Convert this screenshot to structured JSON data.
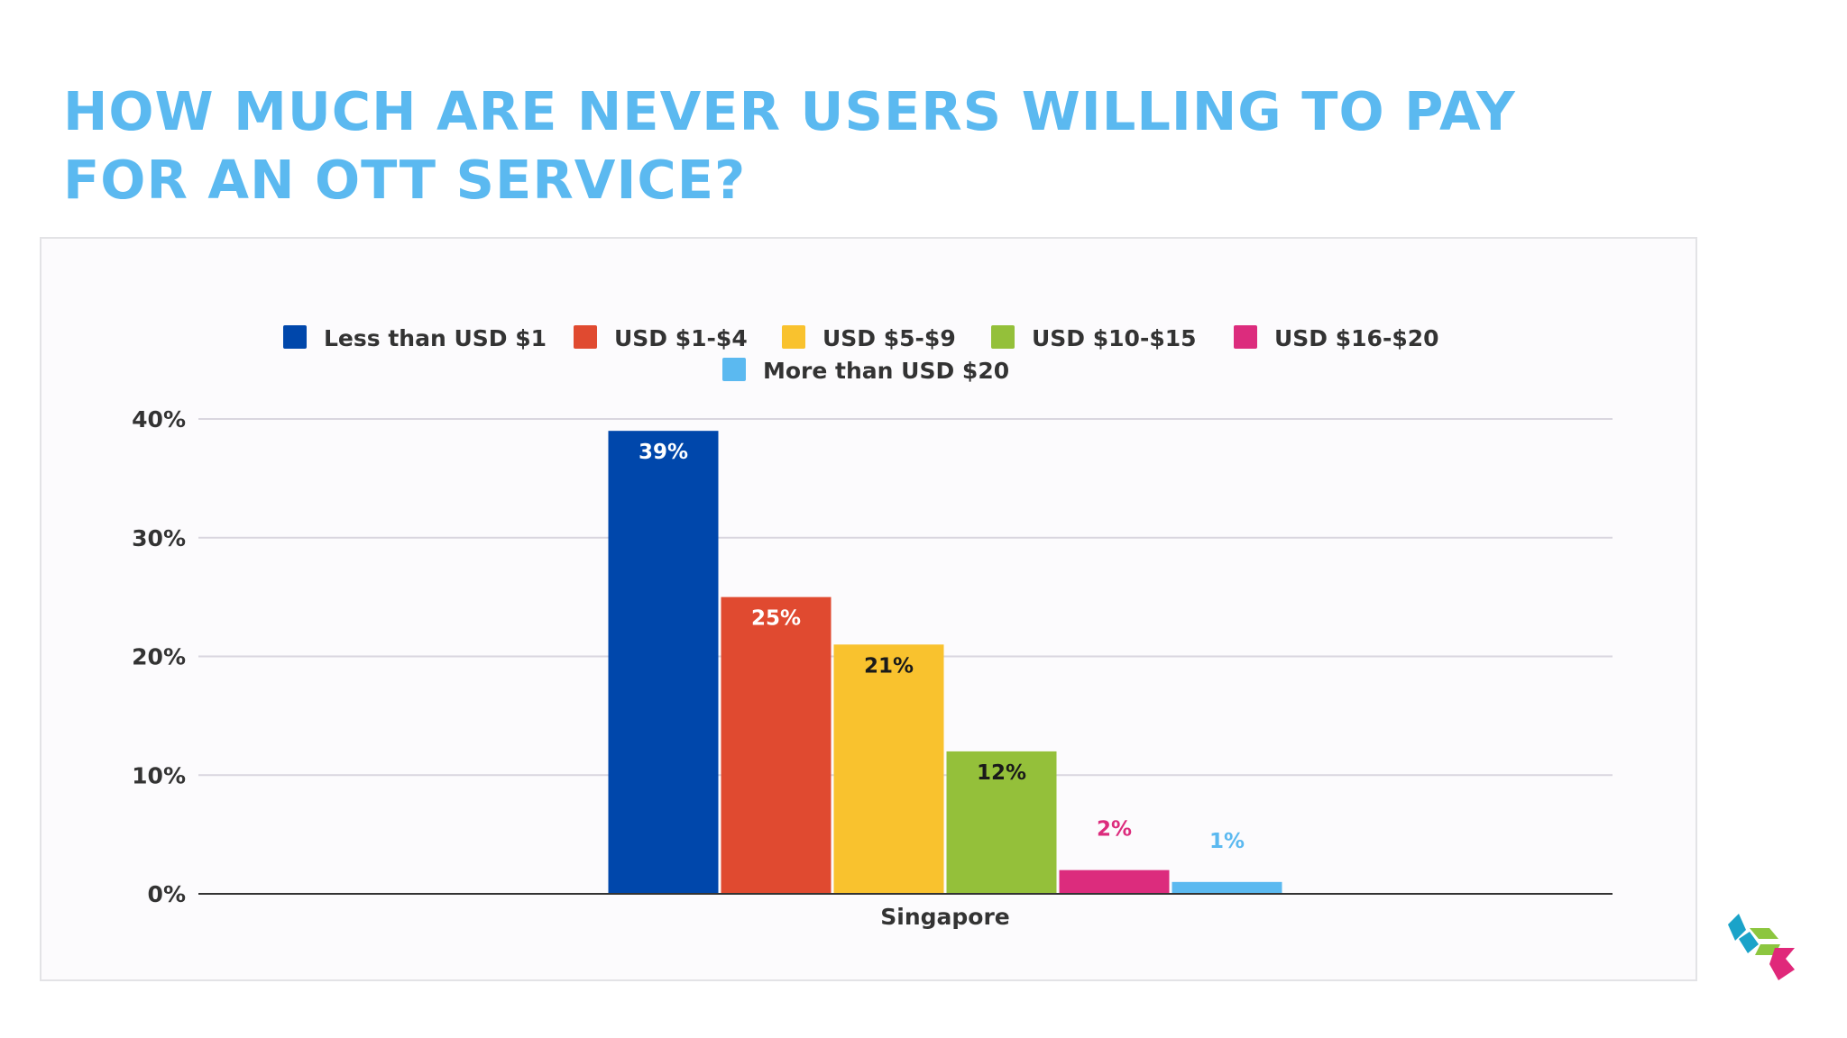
{
  "slide": {
    "title": "HOW MUCH ARE NEVER USERS WILLING TO PAY FOR AN OTT SERVICE?"
  },
  "colors": {
    "title": "#5bb9f0",
    "frame_border": "#e3e3e6",
    "gridline": "#d9d6df",
    "axis": "#333333",
    "text": "#333333"
  },
  "logo": {
    "icon": "brand-logo-icon",
    "colors": [
      "#1aa3c9",
      "#8cc63f",
      "#e0287a"
    ]
  },
  "chart_data": {
    "type": "bar",
    "categories": [
      "Singapore"
    ],
    "series": [
      {
        "name": "Less than USD $1",
        "values": [
          39
        ],
        "label": "39%",
        "color": "#0047ab",
        "label_color": "#ffffff"
      },
      {
        "name": "USD $1-$4",
        "values": [
          25
        ],
        "label": "25%",
        "color": "#e04a30",
        "label_color": "#ffffff"
      },
      {
        "name": "USD $5-$9",
        "values": [
          21
        ],
        "label": "21%",
        "color": "#f9c22e",
        "label_color": "#1a1a1a"
      },
      {
        "name": "USD $10-$15",
        "values": [
          12
        ],
        "label": "12%",
        "color": "#94c03a",
        "label_color": "#1a1a1a"
      },
      {
        "name": "USD $16-$20",
        "values": [
          2
        ],
        "label": "2%",
        "color": "#dc2c7d",
        "label_color": "#dc2c7d"
      },
      {
        "name": "More than USD $20",
        "values": [
          1
        ],
        "label": "1%",
        "color": "#5bb9f0",
        "label_color": "#5bb9f0"
      }
    ],
    "ylim": [
      0,
      40
    ],
    "yticks": [
      0,
      10,
      20,
      30,
      40
    ],
    "ytick_labels": [
      "0%",
      "10%",
      "20%",
      "30%",
      "40%"
    ],
    "grid": true,
    "legend_position": "top"
  }
}
